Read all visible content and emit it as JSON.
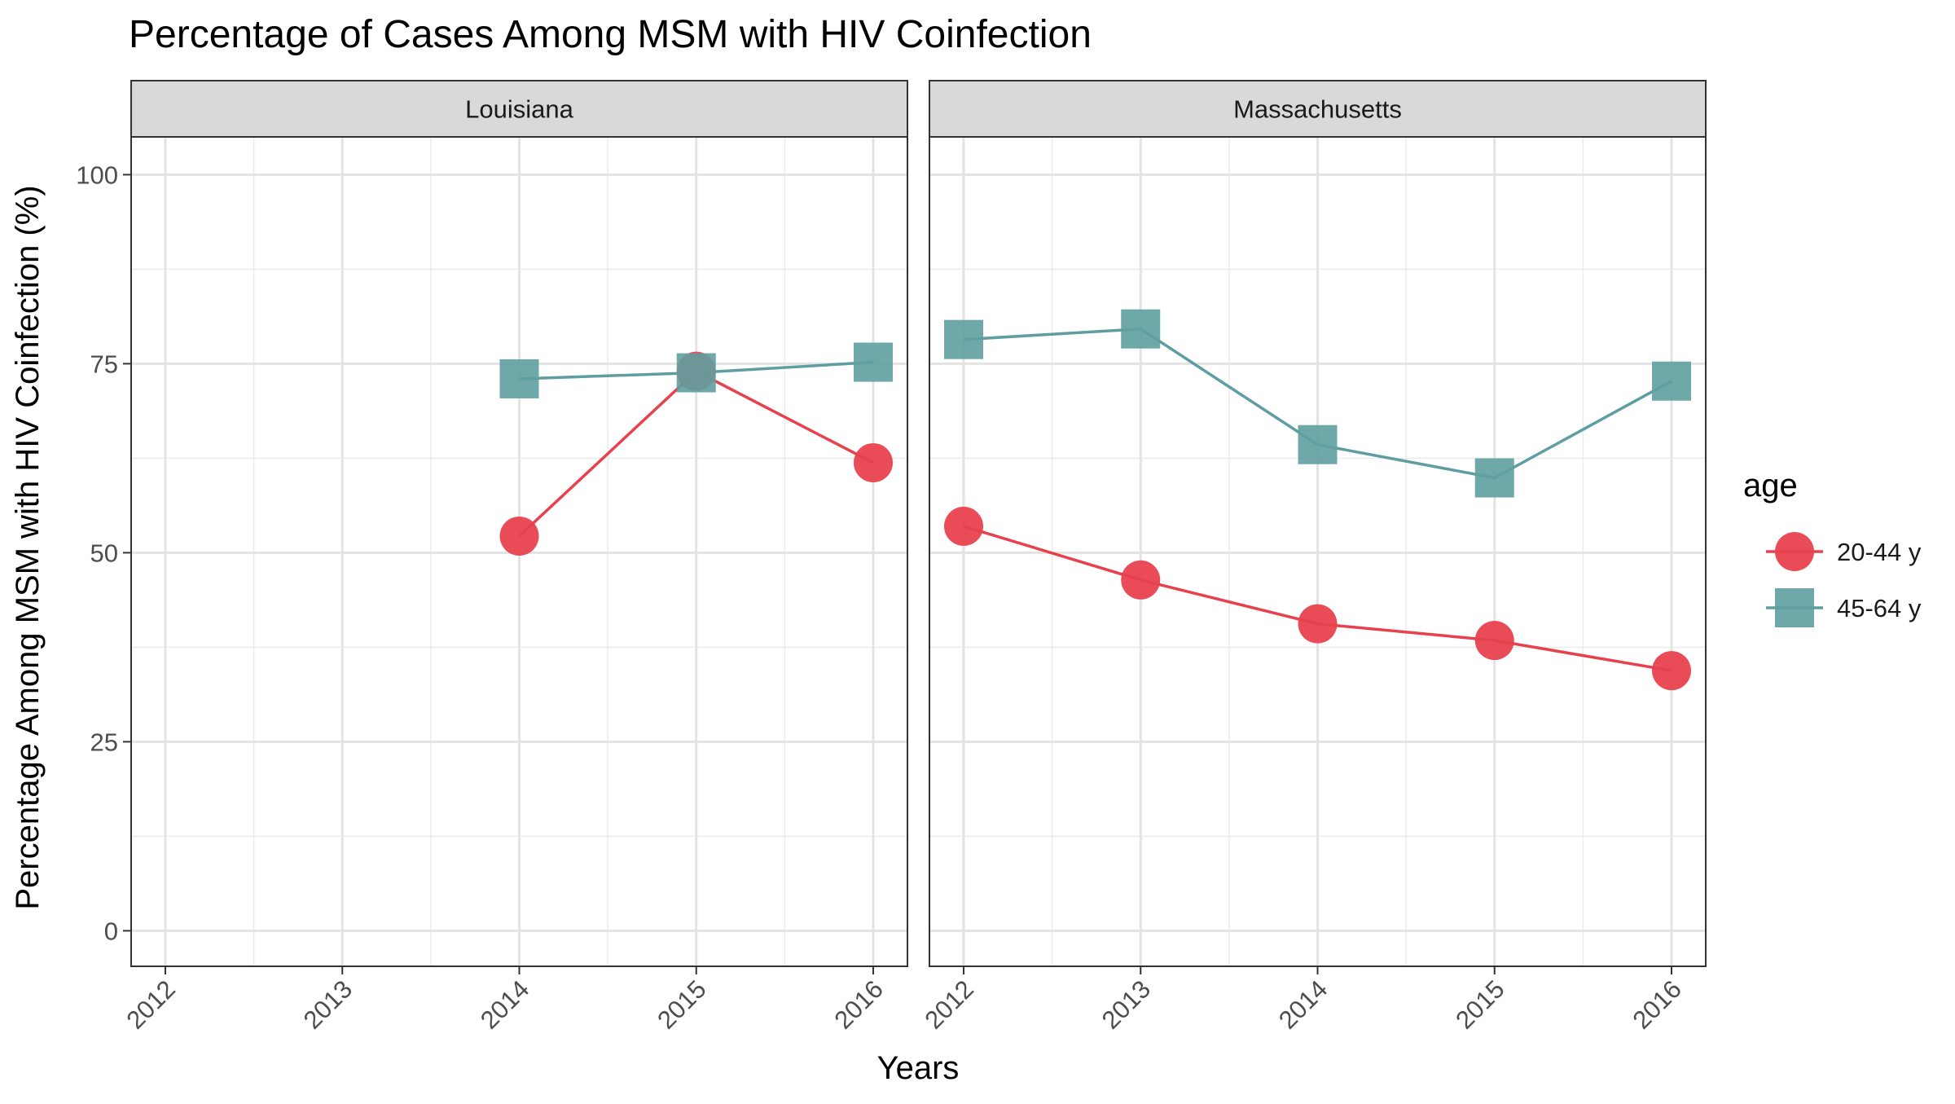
{
  "chart_data": {
    "type": "line",
    "title": "Percentage of Cases Among MSM with HIV Coinfection",
    "xlabel": "Years",
    "ylabel": "Percentage Among MSM with HIV Coinfection (%)",
    "x": [
      "2012",
      "2013",
      "2014",
      "2015",
      "2016"
    ],
    "yticks": [
      "0",
      "25",
      "50",
      "75",
      "100"
    ],
    "ylim": [
      -4.7,
      105
    ],
    "grid": true,
    "legend": {
      "title": "age",
      "placement": "right"
    },
    "colors": {
      "20-44 y": "#e8414e",
      "45-64 y": "#5f9ea0"
    },
    "panels": [
      {
        "facet": "Louisiana",
        "series": [
          {
            "name": "20-44 y",
            "marker": "circle",
            "values": [
              null,
              null,
              52.2,
              74.0,
              61.9
            ]
          },
          {
            "name": "45-64 y",
            "marker": "square",
            "values": [
              null,
              null,
              73.0,
              73.8,
              75.2
            ]
          }
        ]
      },
      {
        "facet": "Massachusetts",
        "series": [
          {
            "name": "20-44 y",
            "marker": "circle",
            "values": [
              53.5,
              46.4,
              40.6,
              38.4,
              34.4
            ]
          },
          {
            "name": "45-64 y",
            "marker": "square",
            "values": [
              78.2,
              79.6,
              64.3,
              59.9,
              72.7
            ]
          }
        ]
      }
    ]
  }
}
